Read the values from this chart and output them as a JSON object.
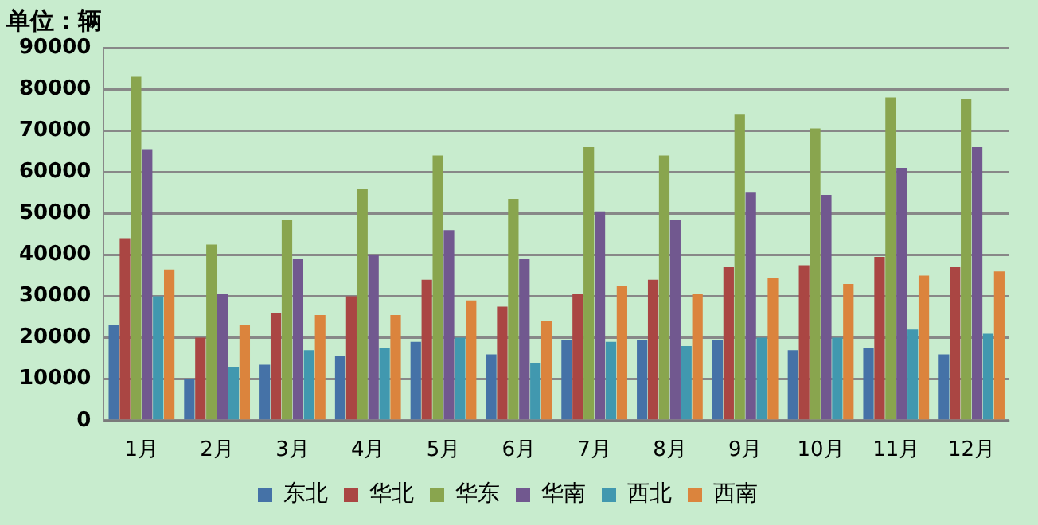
{
  "chart_data": {
    "type": "bar",
    "ylabel": "单位：辆",
    "categories": [
      "1月",
      "2月",
      "3月",
      "4月",
      "5月",
      "6月",
      "7月",
      "8月",
      "9月",
      "10月",
      "11月",
      "12月"
    ],
    "series": [
      {
        "name": "东北",
        "color": "#4572a7",
        "values": [
          23000,
          10000,
          13500,
          15500,
          19000,
          16000,
          19500,
          19500,
          19500,
          17000,
          17500,
          16000
        ]
      },
      {
        "name": "华北",
        "color": "#aa4643",
        "values": [
          44000,
          20000,
          26000,
          30000,
          34000,
          27500,
          30500,
          34000,
          37000,
          37500,
          39500,
          37000
        ]
      },
      {
        "name": "华东",
        "color": "#89a54e",
        "values": [
          83000,
          42500,
          48500,
          56000,
          64000,
          53500,
          66000,
          64000,
          74000,
          70500,
          78000,
          77500
        ]
      },
      {
        "name": "华南",
        "color": "#71588f",
        "values": [
          65500,
          30500,
          39000,
          40000,
          46000,
          39000,
          50500,
          48500,
          55000,
          54500,
          61000,
          66000
        ]
      },
      {
        "name": "西北",
        "color": "#4198af",
        "values": [
          30000,
          13000,
          17000,
          17500,
          20000,
          14000,
          19000,
          18000,
          20000,
          20000,
          22000,
          21000
        ]
      },
      {
        "name": "西南",
        "color": "#db843d",
        "values": [
          36500,
          23000,
          25500,
          25500,
          29000,
          24000,
          32500,
          30500,
          34500,
          33000,
          35000,
          36000
        ]
      }
    ],
    "ylim": [
      0,
      90000
    ],
    "yticks": [
      0,
      10000,
      20000,
      30000,
      40000,
      50000,
      60000,
      70000,
      80000,
      90000
    ],
    "grid": "y",
    "legend": "bottom"
  }
}
